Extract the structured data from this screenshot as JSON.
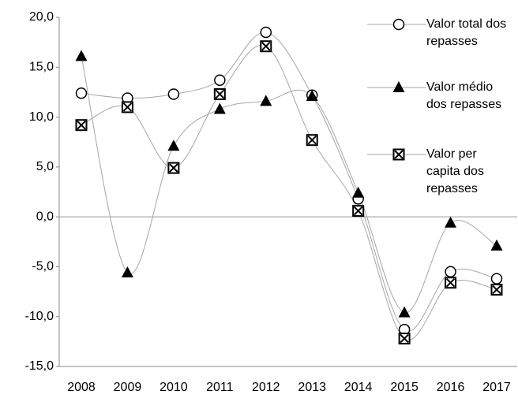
{
  "chart_data": {
    "type": "line",
    "categories": [
      "2008",
      "2009",
      "2010",
      "2011",
      "2012",
      "2013",
      "2014",
      "2015",
      "2016",
      "2017"
    ],
    "series": [
      {
        "name": "Valor total dos repasses",
        "color": "#000000",
        "line_color": "#a6a6a6",
        "marker": "circle",
        "values": [
          12.4,
          11.9,
          12.3,
          13.7,
          18.5,
          12.2,
          1.8,
          -11.3,
          -5.5,
          -6.2
        ]
      },
      {
        "name": "Valor médio dos repasses",
        "color": "#000000",
        "line_color": "#a6a6a6",
        "marker": "triangle",
        "values": [
          16.1,
          -5.6,
          7.1,
          10.8,
          11.6,
          12.1,
          2.4,
          -9.6,
          -0.6,
          -2.9
        ]
      },
      {
        "name": "Valor per capita dos repasses",
        "color": "#000000",
        "line_color": "#a6a6a6",
        "marker": "square-x",
        "values": [
          9.2,
          11.0,
          4.9,
          12.3,
          17.1,
          7.7,
          0.6,
          -12.2,
          -6.6,
          -7.3
        ]
      }
    ],
    "ylim": [
      -15,
      20
    ],
    "yticks": [
      {
        "value": -15,
        "label": "-15,0"
      },
      {
        "value": -10,
        "label": "-10,0"
      },
      {
        "value": -5,
        "label": "-5,0"
      },
      {
        "value": 0,
        "label": "0,0"
      },
      {
        "value": 5,
        "label": "5,0"
      },
      {
        "value": 10,
        "label": "10,0"
      },
      {
        "value": 15,
        "label": "15,0"
      },
      {
        "value": 20,
        "label": "20,0"
      }
    ],
    "smooth": true,
    "legend": "upper right"
  }
}
